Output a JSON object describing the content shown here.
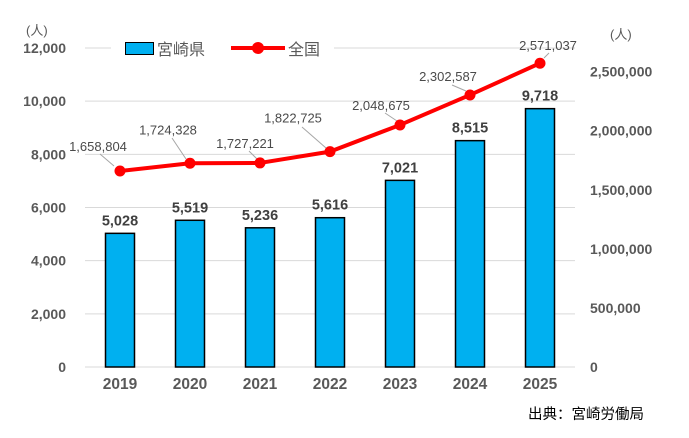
{
  "source": "出典：宮崎労働局",
  "chart_data": {
    "type": "combo-bar-line",
    "categories": [
      "2019",
      "2020",
      "2021",
      "2022",
      "2023",
      "2024",
      "2025"
    ],
    "series": [
      {
        "name": "宮崎県",
        "type": "bar",
        "axis": "left",
        "values": [
          5028,
          5519,
          5236,
          5616,
          7021,
          8515,
          9718
        ],
        "labels": [
          "5,028",
          "5,519",
          "5,236",
          "5,616",
          "7,021",
          "8,515",
          "9,718"
        ]
      },
      {
        "name": "全国",
        "type": "line",
        "axis": "right",
        "values": [
          1658804,
          1724328,
          1727221,
          1822725,
          2048675,
          2302587,
          2571037
        ],
        "labels": [
          "1,658,804",
          "1,724,328",
          "1,727,221",
          "1,822,725",
          "2,048,675",
          "2,302,587",
          "2,571,037"
        ]
      }
    ],
    "left_axis": {
      "unit": "(人)",
      "min": 0,
      "max": 12000,
      "step": 2000,
      "tick_labels": [
        "0",
        "2,000",
        "4,000",
        "6,000",
        "8,000",
        "10,000",
        "12,000"
      ]
    },
    "right_axis": {
      "unit": "(人)",
      "min": 0,
      "max": 2700000,
      "step": 500000,
      "tick_labels": [
        "0",
        "500,000",
        "1,000,000",
        "1,500,000",
        "2,000,000",
        "2,500,000"
      ]
    },
    "grid": true,
    "legend_position": "top",
    "colors": {
      "bar": "#00B0F0",
      "bar_border": "#000000",
      "line": "#FF0000",
      "grid": "#D9D9D9",
      "axis_text": "#595959",
      "data_label": "#404040",
      "leader": "#A6A6A6"
    }
  }
}
